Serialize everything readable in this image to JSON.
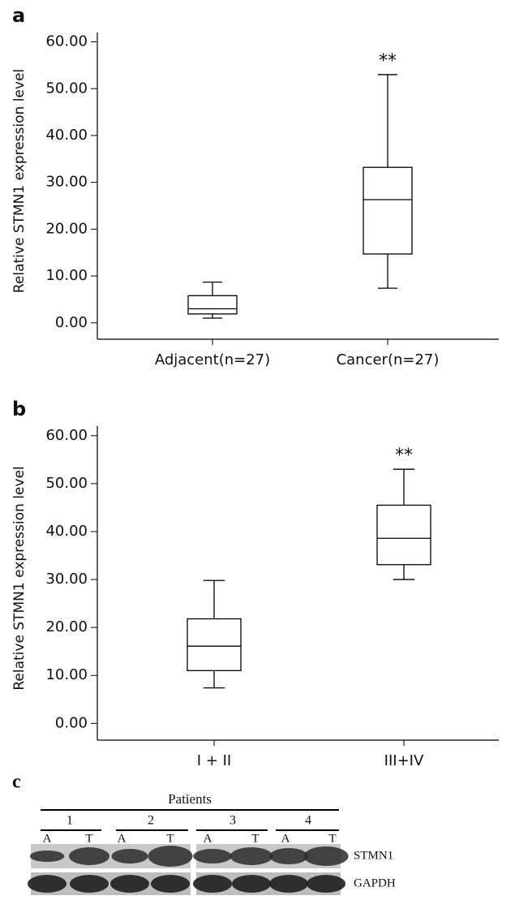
{
  "chart_data": [
    {
      "type": "box",
      "panel_label": "a",
      "y_label": "Relative STMN1 expression level",
      "categories": [
        "Adjacent(n=27)",
        "Cancer(n=27)"
      ],
      "boxes": [
        {
          "whislo": 1.0,
          "q1": 1.9,
          "med": 3.0,
          "q3": 5.8,
          "whishi": 8.7
        },
        {
          "whislo": 7.4,
          "q1": 14.7,
          "med": 26.3,
          "q3": 33.2,
          "whishi": 53.0
        }
      ],
      "annotations": [
        {
          "text": "**",
          "x": "Cancer(n=27)"
        }
      ],
      "ylim": [
        -3.5,
        62
      ],
      "yticks": [
        {
          "value": 0,
          "label": "0.00"
        },
        {
          "value": 10,
          "label": "10.00"
        },
        {
          "value": 20,
          "label": "20.00"
        },
        {
          "value": 30,
          "label": "30.00"
        },
        {
          "value": 40,
          "label": "40.00"
        },
        {
          "value": 50,
          "label": "50.00"
        },
        {
          "value": 60,
          "label": "60.00"
        }
      ]
    },
    {
      "type": "box",
      "panel_label": "b",
      "y_label": "Relative STMN1 expression level",
      "categories": [
        "I + II",
        "III+IV"
      ],
      "boxes": [
        {
          "whislo": 7.4,
          "q1": 11.0,
          "med": 16.1,
          "q3": 21.8,
          "whishi": 29.8
        },
        {
          "whislo": 30.0,
          "q1": 33.1,
          "med": 38.6,
          "q3": 45.5,
          "whishi": 53.0
        }
      ],
      "annotations": [
        {
          "text": "**",
          "x": "III+IV"
        }
      ],
      "ylim": [
        -3.5,
        62
      ],
      "yticks": [
        {
          "value": 0,
          "label": "0.00"
        },
        {
          "value": 10,
          "label": "10.00"
        },
        {
          "value": 20,
          "label": "20.00"
        },
        {
          "value": 30,
          "label": "30.00"
        },
        {
          "value": 40,
          "label": "40.00"
        },
        {
          "value": 50,
          "label": "50.00"
        },
        {
          "value": 60,
          "label": "60.00"
        }
      ]
    }
  ],
  "panel_c": {
    "label": "c",
    "title": "Patients",
    "patients": [
      "1",
      "2",
      "3",
      "4"
    ],
    "lanes": [
      "A",
      "T",
      "A",
      "T",
      "A",
      "T",
      "A",
      "T"
    ],
    "bands": [
      "STMN1",
      "GAPDH"
    ]
  }
}
